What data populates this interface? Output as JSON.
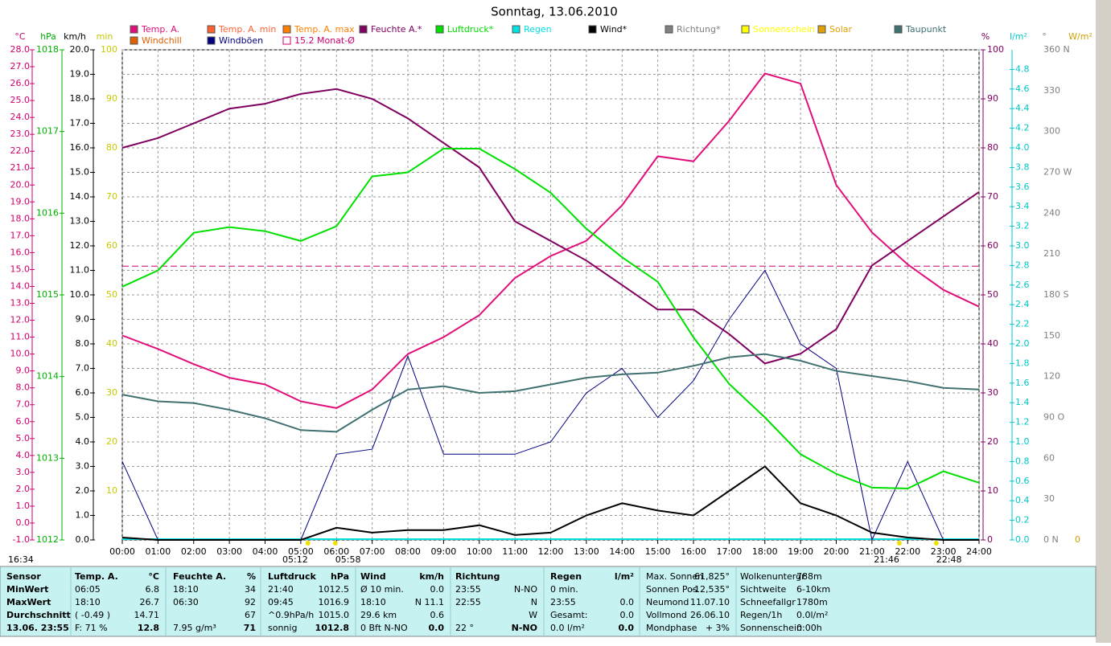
{
  "chart_data": {
    "type": "line",
    "title": "Sonntag, 13.06.2010",
    "corner_time": "16:34",
    "x": [
      0,
      1,
      2,
      3,
      4,
      5,
      6,
      7,
      8,
      9,
      10,
      11,
      12,
      13,
      14,
      15,
      16,
      17,
      18,
      19,
      20,
      21,
      22,
      23,
      24
    ],
    "xlim": [
      0,
      24
    ],
    "xticks": [
      {
        "value": 0,
        "label": "00:00"
      },
      {
        "value": 1,
        "label": "01:00"
      },
      {
        "value": 2,
        "label": "02:00"
      },
      {
        "value": 3,
        "label": "03:00"
      },
      {
        "value": 4,
        "label": "04:00"
      },
      {
        "value": 5,
        "label": "05:00"
      },
      {
        "value": 6,
        "label": "06:00"
      },
      {
        "value": 7,
        "label": "07:00"
      },
      {
        "value": 8,
        "label": "08:00"
      },
      {
        "value": 9,
        "label": "09:00"
      },
      {
        "value": 10,
        "label": "10:00"
      },
      {
        "value": 11,
        "label": "11:00"
      },
      {
        "value": 12,
        "label": "12:00"
      },
      {
        "value": 13,
        "label": "13:00"
      },
      {
        "value": 14,
        "label": "14:00"
      },
      {
        "value": 15,
        "label": "15:00"
      },
      {
        "value": 16,
        "label": "16:00"
      },
      {
        "value": 17,
        "label": "17:00"
      },
      {
        "value": 18,
        "label": "18:00"
      },
      {
        "value": 19,
        "label": "19:00"
      },
      {
        "value": 20,
        "label": "20:00"
      },
      {
        "value": 21,
        "label": "21:00"
      },
      {
        "value": 22,
        "label": "22:00"
      },
      {
        "value": 23,
        "label": "23:00"
      },
      {
        "value": 24,
        "label": "24:00"
      }
    ],
    "y_label": "km/h",
    "ylim": [
      0,
      20
    ],
    "yticks": [
      {
        "value": 0,
        "label": "0.0"
      },
      {
        "value": 1,
        "label": "1.0"
      },
      {
        "value": 2,
        "label": "2.0"
      },
      {
        "value": 3,
        "label": "3.0"
      },
      {
        "value": 4,
        "label": "4.0"
      },
      {
        "value": 5,
        "label": "5.0"
      },
      {
        "value": 6,
        "label": "6.0"
      },
      {
        "value": 7,
        "label": "7.0"
      },
      {
        "value": 8,
        "label": "8.0"
      },
      {
        "value": 9,
        "label": "9.0"
      },
      {
        "value": 10,
        "label": "10.0"
      },
      {
        "value": 11,
        "label": "11.0"
      },
      {
        "value": 12,
        "label": "12.0"
      },
      {
        "value": 13,
        "label": "13.0"
      },
      {
        "value": 14,
        "label": "14.0"
      },
      {
        "value": 15,
        "label": "15.0"
      },
      {
        "value": 16,
        "label": "16.0"
      },
      {
        "value": 17,
        "label": "17.0"
      },
      {
        "value": 18,
        "label": "18.0"
      },
      {
        "value": 19,
        "label": "19.0"
      },
      {
        "value": 20,
        "label": "20.0"
      }
    ],
    "grid": true,
    "axes": {
      "temp": {
        "label": "°C",
        "color": "#d0006f",
        "lim": [
          -1,
          28
        ],
        "ticks": [
          {
            "value": -1,
            "label": "-1.0"
          },
          {
            "value": 0,
            "label": "0.0"
          },
          {
            "value": 1,
            "label": "1.0"
          },
          {
            "value": 2,
            "label": "2.0"
          },
          {
            "value": 3,
            "label": "3.0"
          },
          {
            "value": 4,
            "label": "4.0"
          },
          {
            "value": 5,
            "label": "5.0"
          },
          {
            "value": 6,
            "label": "6.0"
          },
          {
            "value": 7,
            "label": "7.0"
          },
          {
            "value": 8,
            "label": "8.0"
          },
          {
            "value": 9,
            "label": "9.0"
          },
          {
            "value": 10,
            "label": "10.0"
          },
          {
            "value": 11,
            "label": "11.0"
          },
          {
            "value": 12,
            "label": "12.0"
          },
          {
            "value": 13,
            "label": "13.0"
          },
          {
            "value": 14,
            "label": "14.0"
          },
          {
            "value": 15,
            "label": "15.0"
          },
          {
            "value": 16,
            "label": "16.0"
          },
          {
            "value": 17,
            "label": "17.0"
          },
          {
            "value": 18,
            "label": "18.0"
          },
          {
            "value": 19,
            "label": "19.0"
          },
          {
            "value": 20,
            "label": "20.0"
          },
          {
            "value": 21,
            "label": "21.0"
          },
          {
            "value": 22,
            "label": "22.0"
          },
          {
            "value": 23,
            "label": "23.0"
          },
          {
            "value": 24,
            "label": "24.0"
          },
          {
            "value": 25,
            "label": "25.0"
          },
          {
            "value": 26,
            "label": "26.0"
          },
          {
            "value": 27,
            "label": "27.0"
          },
          {
            "value": 28,
            "label": "28.0"
          }
        ]
      },
      "pressure": {
        "label": "hPa",
        "color": "#00b000",
        "lim": [
          1012,
          1018
        ],
        "ticks": [
          1012,
          1013,
          1014,
          1015,
          1016,
          1017,
          1018
        ]
      },
      "minutes": {
        "label": "min",
        "color": "#c8c800",
        "lim": [
          0,
          100
        ],
        "ticks": [
          10,
          20,
          30,
          40,
          50,
          60,
          70,
          80,
          90,
          100
        ]
      },
      "humidity": {
        "label": "%",
        "color": "#800060",
        "lim": [
          0,
          100
        ],
        "ticks": [
          0,
          10,
          20,
          30,
          40,
          50,
          60,
          70,
          80,
          90,
          100
        ]
      },
      "rain": {
        "label": "l/m²",
        "color": "#00c8c8",
        "lim": [
          0,
          5
        ],
        "ticks": [
          {
            "value": 0,
            "label": "0.0"
          },
          {
            "value": 0.2,
            "label": "0.2"
          },
          {
            "value": 0.4,
            "label": "0.4"
          },
          {
            "value": 0.6,
            "label": "0.6"
          },
          {
            "value": 0.8,
            "label": "0.8"
          },
          {
            "value": 1,
            "label": "1.0"
          },
          {
            "value": 1.2,
            "label": "1.2"
          },
          {
            "value": 1.4,
            "label": "1.4"
          },
          {
            "value": 1.6,
            "label": "1.6"
          },
          {
            "value": 1.8,
            "label": "1.8"
          },
          {
            "value": 2,
            "label": "2.0"
          },
          {
            "value": 2.2,
            "label": "2.2"
          },
          {
            "value": 2.4,
            "label": "2.4"
          },
          {
            "value": 2.6,
            "label": "2.6"
          },
          {
            "value": 2.8,
            "label": "2.8"
          },
          {
            "value": 3,
            "label": "3.0"
          },
          {
            "value": 3.2,
            "label": "3.2"
          },
          {
            "value": 3.4,
            "label": "3.4"
          },
          {
            "value": 3.6,
            "label": "3.6"
          },
          {
            "value": 3.8,
            "label": "3.8"
          },
          {
            "value": 4,
            "label": "4.0"
          },
          {
            "value": 4.2,
            "label": "4.2"
          },
          {
            "value": 4.4,
            "label": "4.4"
          },
          {
            "value": 4.6,
            "label": "4.6"
          },
          {
            "value": 4.8,
            "label": "4.8"
          }
        ]
      },
      "direction": {
        "label": "°",
        "color": "#808080",
        "lim": [
          0,
          360
        ],
        "ticks": [
          {
            "value": 0,
            "label": "0 N"
          },
          30,
          60,
          {
            "value": 90,
            "label": "90 O"
          },
          120,
          150,
          {
            "value": 180,
            "label": "180 S"
          },
          210,
          240,
          {
            "value": 270,
            "label": "270 W"
          },
          300,
          330,
          {
            "value": 360,
            "label": "360 N"
          }
        ]
      },
      "solar": {
        "label": "W/m²",
        "color": "#d0a000",
        "lim": [
          0,
          1000
        ],
        "ticks": [
          0
        ]
      }
    },
    "series": [
      {
        "name": "Temp. A.",
        "color": "#e0107a",
        "axis": "temp",
        "values": [
          11.1,
          10.3,
          9.4,
          8.6,
          8.2,
          7.2,
          6.8,
          7.9,
          10.0,
          11.0,
          12.3,
          14.5,
          15.8,
          16.7,
          18.8,
          21.7,
          21.4,
          23.8,
          26.6,
          26.0,
          20.0,
          17.2,
          15.3,
          13.8,
          12.8
        ]
      },
      {
        "name": "Windböen",
        "color": "#000080",
        "values": [
          3.2,
          0,
          0,
          0,
          0,
          0,
          3.5,
          3.7,
          7.5,
          3.5,
          3.5,
          3.5,
          4.0,
          6.0,
          7.0,
          5.0,
          6.5,
          9.0,
          11.0,
          8.0,
          7.0,
          0,
          3.2,
          0,
          0
        ]
      },
      {
        "name": "Feuchte A.*",
        "color": "#800060",
        "axis": "humidity",
        "values": [
          80,
          82,
          85,
          88,
          89,
          91,
          92,
          90,
          86,
          81,
          76,
          65,
          61,
          57,
          52,
          47,
          47,
          42,
          36,
          38,
          43,
          56,
          61,
          66,
          71
        ]
      },
      {
        "name": "Luftdruck*",
        "color": "#00e000",
        "axis": "pressure",
        "values": [
          1015.1,
          1015.3,
          1015.76,
          1015.83,
          1015.78,
          1015.66,
          1015.84,
          1016.45,
          1016.5,
          1016.79,
          1016.79,
          1016.54,
          1016.25,
          1015.81,
          1015.46,
          1015.16,
          1014.48,
          1013.91,
          1013.5,
          1013.05,
          1012.81,
          1012.64,
          1012.63,
          1012.84,
          1012.7
        ]
      },
      {
        "name": "Wind*",
        "color": "#000000",
        "values": [
          0.1,
          0,
          0,
          0,
          0,
          0,
          0.5,
          0.3,
          0.4,
          0.4,
          0.6,
          0.2,
          0.3,
          1.0,
          1.5,
          1.2,
          1.0,
          2.0,
          3.0,
          1.5,
          1.0,
          0.3,
          0.1,
          0,
          0
        ]
      },
      {
        "name": "Taupunkt",
        "color": "#407070",
        "axis": "temp",
        "values": [
          7.6,
          7.2,
          7.1,
          6.7,
          6.2,
          5.5,
          5.4,
          6.7,
          7.9,
          8.1,
          7.7,
          7.8,
          8.2,
          8.6,
          8.8,
          8.9,
          9.3,
          9.8,
          10.0,
          9.6,
          9.0,
          8.7,
          8.4,
          8.0,
          7.9
        ]
      }
    ],
    "legend_only": [
      {
        "name": "Windchill",
        "color": "#e06000"
      },
      {
        "name": "Temp. A. min",
        "color": "#ff6030"
      },
      {
        "name": "Temp. A. max",
        "color": "#ff8000"
      },
      {
        "name": "Regen",
        "color": "#00e0e0"
      },
      {
        "name": "Richtung*",
        "color": "#808080"
      },
      {
        "name": "Sonnenschein",
        "color": "#ffff00"
      },
      {
        "name": "Solar",
        "color": "#e0a000"
      }
    ],
    "reference_lines": [
      {
        "name": "15.2 Monat-Ø",
        "color": "#d0006f",
        "axis": "temp",
        "value": 15.2
      }
    ],
    "sun_times": [
      {
        "x": 5.2,
        "label": "05:12"
      },
      {
        "x": 5.9667,
        "label": "05:58"
      },
      {
        "x": 21.7667,
        "label": "21:46"
      },
      {
        "x": 22.8,
        "label": "22:48"
      }
    ]
  },
  "stats": {
    "labels": [
      "Sensor",
      "MinWert",
      "MaxWert",
      "Durchschnitt",
      "13.06. 23:55"
    ],
    "sections": [
      {
        "title": "Temp. A.",
        "unit": "°C",
        "rows": [
          [
            "06:05",
            "6.8"
          ],
          [
            "18:10",
            "26.7"
          ],
          [
            "( -0.49 )",
            "14.71"
          ],
          [
            "F: 71 %",
            "12.8"
          ]
        ]
      },
      {
        "title": "Feuchte A.",
        "unit": "%",
        "rows": [
          [
            "18:10",
            "34"
          ],
          [
            "06:30",
            "92"
          ],
          [
            null,
            "67"
          ],
          [
            "7.95 g/m³",
            "71"
          ]
        ]
      },
      {
        "title": "Luftdruck",
        "unit": "hPa",
        "rows": [
          [
            "21:40",
            "1012.5"
          ],
          [
            "09:45",
            "1016.9"
          ],
          [
            "^0.9hPa/h",
            "1015.0"
          ],
          [
            "sonnig",
            "1012.8"
          ]
        ]
      },
      {
        "title": "Wind",
        "unit": "km/h",
        "rows": [
          [
            "Ø 10 min.",
            "0.0"
          ],
          [
            "18:10",
            "N 11.1"
          ],
          [
            "29.6 km",
            "0.6"
          ],
          [
            "0 Bft N-NO",
            "0.0"
          ]
        ]
      },
      {
        "title": "Richtung",
        "unit": null,
        "rows": [
          [
            "23:55",
            "N-NO"
          ],
          [
            "22:55",
            "N"
          ],
          [
            null,
            "W"
          ],
          [
            "22 °",
            "N-NO"
          ]
        ]
      },
      {
        "title": "Regen",
        "unit": "l/m²",
        "rows": [
          [
            "0 min.",
            null
          ],
          [
            "23:55",
            "0.0"
          ],
          [
            "Gesamt:",
            "0.0"
          ],
          [
            "0.0 l/m²",
            "0.0"
          ]
        ]
      }
    ],
    "extra": [
      [
        [
          "Max. Sonnen",
          "61,825°"
        ],
        [
          "Sonnen Pos",
          "-12,535°"
        ],
        [
          "Neumond",
          "11.07.10"
        ],
        [
          "Vollmond",
          "26.06.10"
        ],
        [
          "Mondphase",
          "+ 3%"
        ]
      ],
      [
        [
          "Wolkenuntergr",
          "788m"
        ],
        [
          "Sichtweite",
          "6-10km"
        ],
        [
          "Schneefallgr",
          "1780m"
        ],
        [
          "Regen/1h",
          "0.0l/m²"
        ],
        [
          "Sonnenschein",
          "0:00h"
        ]
      ]
    ]
  }
}
